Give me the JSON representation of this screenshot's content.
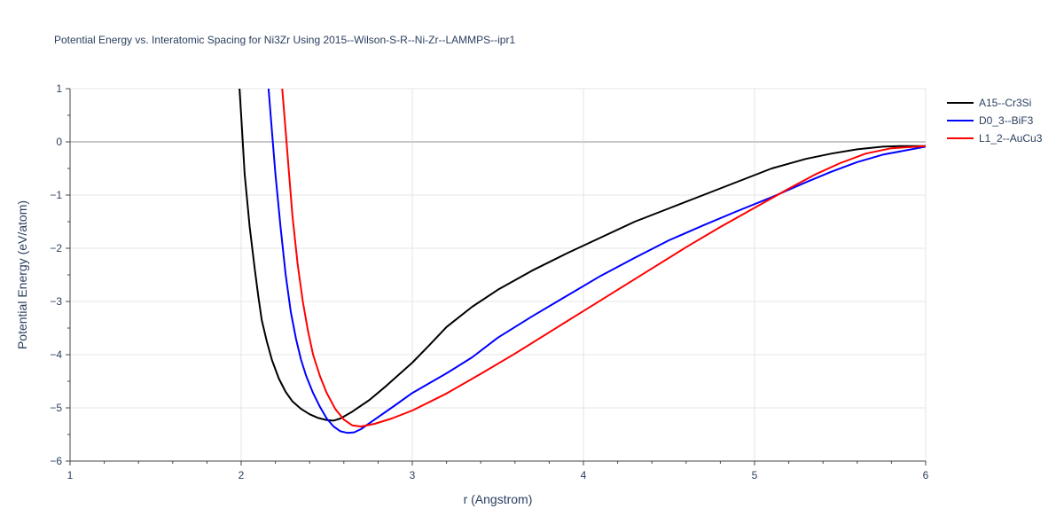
{
  "chart_data": {
    "type": "line",
    "title": "Potential Energy vs. Interatomic Spacing for Ni3Zr Using 2015--Wilson-S-R--Ni-Zr--LAMMPS--ipr1",
    "xlabel": "r (Angstrom)",
    "ylabel": "Potential Energy (eV/atom)",
    "xlim": [
      1,
      6
    ],
    "ylim": [
      -6,
      1
    ],
    "xticks": [
      1,
      2,
      3,
      4,
      5,
      6
    ],
    "xtick_labels": [
      "1",
      "2",
      "3",
      "4",
      "5",
      "6"
    ],
    "yticks": [
      1,
      0,
      -1,
      -2,
      -3,
      -4,
      -5,
      -6
    ],
    "ytick_labels": [
      "1",
      "0",
      "−1",
      "−2",
      "−3",
      "−4",
      "−5",
      "−6"
    ],
    "grid": true,
    "legend_position": "top-right",
    "series": [
      {
        "name": "A15--Cr3Si",
        "color": "#000000",
        "points": [
          [
            1.99,
            1.0
          ],
          [
            2.0,
            0.5
          ],
          [
            2.02,
            -0.6
          ],
          [
            2.05,
            -1.6
          ],
          [
            2.08,
            -2.4
          ],
          [
            2.1,
            -2.9
          ],
          [
            2.12,
            -3.35
          ],
          [
            2.15,
            -3.75
          ],
          [
            2.18,
            -4.1
          ],
          [
            2.22,
            -4.45
          ],
          [
            2.26,
            -4.7
          ],
          [
            2.3,
            -4.88
          ],
          [
            2.35,
            -5.02
          ],
          [
            2.4,
            -5.12
          ],
          [
            2.45,
            -5.19
          ],
          [
            2.5,
            -5.23
          ],
          [
            2.54,
            -5.24
          ],
          [
            2.58,
            -5.2
          ],
          [
            2.65,
            -5.07
          ],
          [
            2.75,
            -4.85
          ],
          [
            2.85,
            -4.58
          ],
          [
            3.0,
            -4.15
          ],
          [
            3.1,
            -3.82
          ],
          [
            3.2,
            -3.48
          ],
          [
            3.35,
            -3.1
          ],
          [
            3.5,
            -2.78
          ],
          [
            3.7,
            -2.42
          ],
          [
            3.9,
            -2.1
          ],
          [
            4.1,
            -1.8
          ],
          [
            4.3,
            -1.5
          ],
          [
            4.5,
            -1.25
          ],
          [
            4.7,
            -1.0
          ],
          [
            4.9,
            -0.75
          ],
          [
            5.1,
            -0.5
          ],
          [
            5.3,
            -0.32
          ],
          [
            5.45,
            -0.22
          ],
          [
            5.6,
            -0.14
          ],
          [
            5.75,
            -0.09
          ],
          [
            5.85,
            -0.08
          ],
          [
            6.0,
            -0.08
          ]
        ]
      },
      {
        "name": "D0_3--BiF3",
        "color": "#0000ff",
        "points": [
          [
            2.16,
            1.0
          ],
          [
            2.18,
            0.2
          ],
          [
            2.2,
            -0.6
          ],
          [
            2.23,
            -1.6
          ],
          [
            2.26,
            -2.5
          ],
          [
            2.29,
            -3.2
          ],
          [
            2.32,
            -3.7
          ],
          [
            2.35,
            -4.1
          ],
          [
            2.38,
            -4.4
          ],
          [
            2.42,
            -4.72
          ],
          [
            2.46,
            -4.98
          ],
          [
            2.5,
            -5.2
          ],
          [
            2.54,
            -5.35
          ],
          [
            2.58,
            -5.44
          ],
          [
            2.62,
            -5.47
          ],
          [
            2.66,
            -5.46
          ],
          [
            2.7,
            -5.4
          ],
          [
            2.78,
            -5.22
          ],
          [
            2.9,
            -4.95
          ],
          [
            3.0,
            -4.72
          ],
          [
            3.2,
            -4.35
          ],
          [
            3.35,
            -4.05
          ],
          [
            3.5,
            -3.68
          ],
          [
            3.7,
            -3.28
          ],
          [
            3.9,
            -2.9
          ],
          [
            4.1,
            -2.52
          ],
          [
            4.3,
            -2.18
          ],
          [
            4.5,
            -1.85
          ],
          [
            4.7,
            -1.57
          ],
          [
            4.9,
            -1.3
          ],
          [
            5.1,
            -1.04
          ],
          [
            5.3,
            -0.76
          ],
          [
            5.45,
            -0.56
          ],
          [
            5.6,
            -0.38
          ],
          [
            5.75,
            -0.24
          ],
          [
            5.9,
            -0.15
          ],
          [
            6.0,
            -0.09
          ]
        ]
      },
      {
        "name": "L1_2--AuCu3",
        "color": "#ff0000",
        "points": [
          [
            2.24,
            1.0
          ],
          [
            2.26,
            0.2
          ],
          [
            2.28,
            -0.6
          ],
          [
            2.3,
            -1.4
          ],
          [
            2.33,
            -2.3
          ],
          [
            2.36,
            -3.0
          ],
          [
            2.39,
            -3.55
          ],
          [
            2.42,
            -4.0
          ],
          [
            2.46,
            -4.4
          ],
          [
            2.5,
            -4.72
          ],
          [
            2.55,
            -5.02
          ],
          [
            2.6,
            -5.22
          ],
          [
            2.65,
            -5.33
          ],
          [
            2.7,
            -5.35
          ],
          [
            2.78,
            -5.3
          ],
          [
            2.88,
            -5.2
          ],
          [
            3.0,
            -5.05
          ],
          [
            3.2,
            -4.73
          ],
          [
            3.4,
            -4.36
          ],
          [
            3.6,
            -3.98
          ],
          [
            3.8,
            -3.58
          ],
          [
            4.0,
            -3.18
          ],
          [
            4.2,
            -2.78
          ],
          [
            4.4,
            -2.38
          ],
          [
            4.6,
            -1.98
          ],
          [
            4.8,
            -1.6
          ],
          [
            5.0,
            -1.24
          ],
          [
            5.2,
            -0.88
          ],
          [
            5.35,
            -0.62
          ],
          [
            5.5,
            -0.4
          ],
          [
            5.65,
            -0.22
          ],
          [
            5.8,
            -0.12
          ],
          [
            6.0,
            -0.08
          ]
        ]
      }
    ]
  }
}
